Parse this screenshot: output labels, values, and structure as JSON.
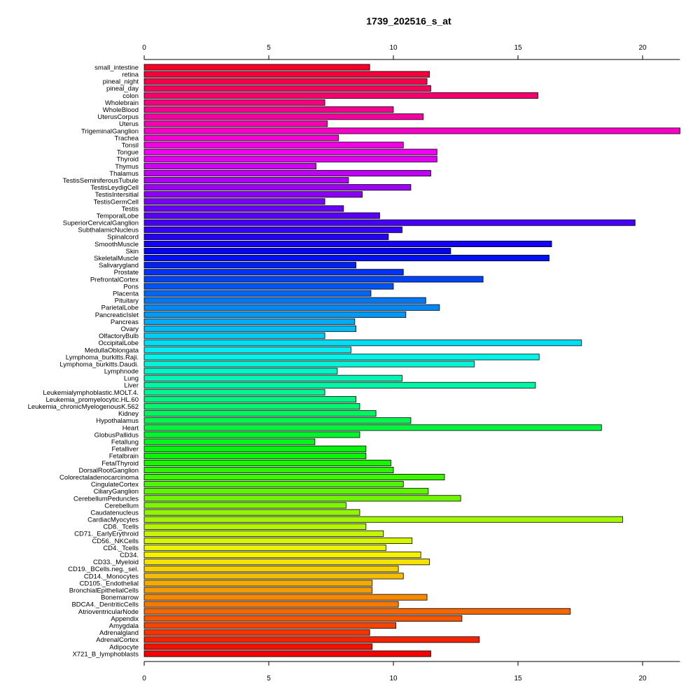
{
  "chart_data": {
    "type": "bar",
    "orientation": "horizontal",
    "title": "1739_202516_s_at",
    "xlabel": "",
    "ylabel": "",
    "xlim": [
      0,
      21.5
    ],
    "xticks": [
      0,
      5,
      10,
      15,
      20
    ],
    "categories": [
      "small_intestine",
      "retina",
      "pineal_night",
      "pineal_day",
      "colon",
      "Wholebrain",
      "WholeBlood",
      "UterusCorpus",
      "Uterus",
      "TrigeminalGanglion",
      "Trachea",
      "Tonsil",
      "Tongue",
      "Thyroid",
      "Thymus",
      "Thalamus",
      "TestisSeminiferousTubule",
      "TestisLeydigCell",
      "TestisIntersitial",
      "TestisGermCell",
      "Testis",
      "TemporalLobe",
      "SuperiorCervicalGanglion",
      "SubthalamicNucleus",
      "Spinalcord",
      "SmoothMuscle",
      "Skin",
      "SkeletalMuscle",
      "Salivarygland",
      "Prostate",
      "PrefrontalCortex",
      "Pons",
      "Placenta",
      "Pituitary",
      "ParietalLobe",
      "PancreaticIslet",
      "Pancreas",
      "Ovary",
      "OlfactoryBulb",
      "OccipitalLobe",
      "MedullaOblongata",
      "Lymphoma_burkitts.Raji.",
      "Lymphoma_burkitts.Daudi.",
      "Lymphnode",
      "Lung",
      "Liver",
      "Leukemialymphoblastic.MOLT.4.",
      "Leukemia_promyelocytic.HL.60",
      "Leukemia_chronicMyelogenousK.562",
      "Kidney",
      "Hypothalamus",
      "Heart",
      "GlobusPallidus",
      "Fetallung",
      "Fetalliver",
      "Fetalbrain",
      "FetalThyroid",
      "DorsalRootGanglion",
      "Colorectaladenocarcinoma",
      "CingulateCortex",
      "CiliaryGanglion",
      "CerebellumPeduncles",
      "Cerebellum",
      "Caudatenucleus",
      "CardiacMyocytes",
      "CD8._Tcells",
      "CD71._EarlyErythroid",
      "CD56._NKCells",
      "CD4._Tcells",
      "CD34.",
      "CD33._Myeloid",
      "CD19._BCells.neg._sel.",
      "CD14._Monocytes",
      "CD105._Endothelial",
      "BronchialEpithelialCells",
      "Bonemarrow",
      "BDCA4._DentriticCells",
      "AtrioventricularNode",
      "Appendix",
      "Amygdala",
      "Adrenalgland",
      "AdrenalCortex",
      "Adipocyte",
      "X721_B_lymphoblasts"
    ],
    "values": [
      9.05,
      11.45,
      11.35,
      11.5,
      15.8,
      7.25,
      10.0,
      11.2,
      7.35,
      21.5,
      7.8,
      10.4,
      11.75,
      11.75,
      6.9,
      11.5,
      8.2,
      10.7,
      8.75,
      7.25,
      8.0,
      9.45,
      19.7,
      10.35,
      9.8,
      16.35,
      12.3,
      16.25,
      8.5,
      10.4,
      13.6,
      10.0,
      9.1,
      11.3,
      11.85,
      10.5,
      8.45,
      8.5,
      7.25,
      17.55,
      8.3,
      15.85,
      13.25,
      7.75,
      10.35,
      15.7,
      7.25,
      8.5,
      8.65,
      9.3,
      10.7,
      18.35,
      8.65,
      6.85,
      8.9,
      8.9,
      9.9,
      10.0,
      12.05,
      10.4,
      11.4,
      12.7,
      8.1,
      8.65,
      19.2,
      8.9,
      9.6,
      10.75,
      9.7,
      11.1,
      11.45,
      10.2,
      10.4,
      9.15,
      9.15,
      11.35,
      10.2,
      17.1,
      12.75,
      10.1,
      9.05,
      13.45,
      9.15,
      11.5
    ],
    "bar_colors_note": "rainbow gradient from red (top) through magenta, blue, cyan, green, yellow, orange to red (bottom)",
    "grid": false,
    "axes": [
      "top",
      "bottom"
    ]
  }
}
